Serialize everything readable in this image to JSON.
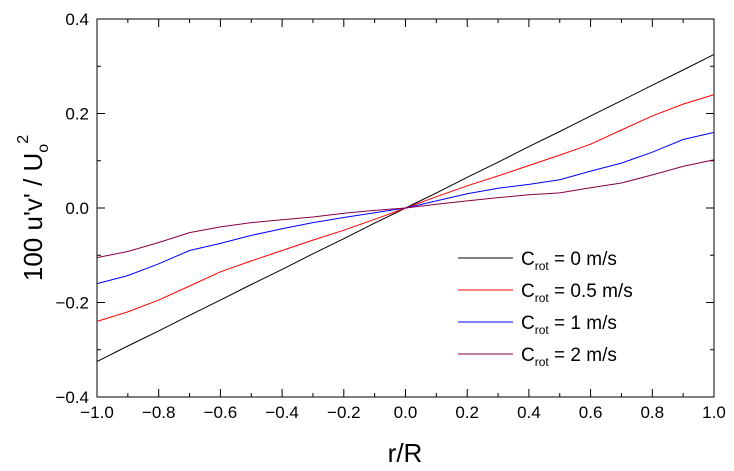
{
  "chart_data": {
    "type": "line",
    "xlabel": "r/R",
    "ylabel_parts": {
      "main": "100 u'v' / U",
      "sub": "o",
      "sup": "2"
    },
    "xlim": [
      -1.0,
      1.0
    ],
    "ylim": [
      -0.4,
      0.4
    ],
    "xticks": [
      -1.0,
      -0.8,
      -0.6,
      -0.4,
      -0.2,
      0.0,
      0.2,
      0.4,
      0.6,
      0.8,
      1.0
    ],
    "xtick_labels": [
      "−1.0",
      "−0.8",
      "−0.6",
      "−0.4",
      "−0.2",
      "0.0",
      "0.2",
      "0.4",
      "0.6",
      "0.8",
      "1.0"
    ],
    "yticks": [
      -0.4,
      -0.2,
      0.0,
      0.2,
      0.4
    ],
    "ytick_labels": [
      "−0.4",
      "−0.2",
      "0.0",
      "0.2",
      "0.4"
    ],
    "grid": false,
    "legend_position": "bottom-right",
    "series": [
      {
        "name_main": "C",
        "name_sub": "rot",
        "name_rest": " = 0 m/s",
        "color": "#000000",
        "x": [
          -1.0,
          -0.9,
          -0.8,
          -0.7,
          -0.6,
          -0.5,
          -0.4,
          -0.3,
          -0.2,
          -0.1,
          0.0,
          0.1,
          0.2,
          0.3,
          0.4,
          0.5,
          0.6,
          0.7,
          0.8,
          0.9,
          1.0
        ],
        "y": [
          -0.325,
          -0.292,
          -0.26,
          -0.227,
          -0.195,
          -0.162,
          -0.13,
          -0.097,
          -0.065,
          -0.032,
          0.0,
          0.032,
          0.065,
          0.097,
          0.13,
          0.162,
          0.195,
          0.227,
          0.26,
          0.292,
          0.325
        ]
      },
      {
        "name_main": "C",
        "name_sub": "rot",
        "name_rest": " = 0.5 m/s",
        "color": "#ff0000",
        "x": [
          -1.0,
          -0.9,
          -0.8,
          -0.7,
          -0.6,
          -0.5,
          -0.4,
          -0.3,
          -0.2,
          -0.1,
          0.0,
          0.1,
          0.2,
          0.3,
          0.4,
          0.5,
          0.6,
          0.7,
          0.8,
          0.9,
          1.0
        ],
        "y": [
          -0.24,
          -0.22,
          -0.195,
          -0.165,
          -0.135,
          -0.112,
          -0.09,
          -0.068,
          -0.047,
          -0.024,
          0.0,
          0.024,
          0.047,
          0.068,
          0.09,
          0.112,
          0.135,
          0.165,
          0.195,
          0.22,
          0.24
        ]
      },
      {
        "name_main": "C",
        "name_sub": "rot",
        "name_rest": " = 1 m/s",
        "color": "#0000ff",
        "x": [
          -1.0,
          -0.9,
          -0.8,
          -0.7,
          -0.6,
          -0.5,
          -0.4,
          -0.3,
          -0.2,
          -0.1,
          0.0,
          0.1,
          0.2,
          0.3,
          0.4,
          0.5,
          0.6,
          0.7,
          0.8,
          0.9,
          1.0
        ],
        "y": [
          -0.16,
          -0.143,
          -0.118,
          -0.09,
          -0.075,
          -0.058,
          -0.044,
          -0.031,
          -0.02,
          -0.01,
          0.0,
          0.015,
          0.03,
          0.042,
          0.05,
          0.06,
          0.078,
          0.095,
          0.118,
          0.145,
          0.16
        ]
      },
      {
        "name_main": "C",
        "name_sub": "rot",
        "name_rest": " = 2 m/s",
        "color": "#880044",
        "x": [
          -1.0,
          -0.9,
          -0.8,
          -0.7,
          -0.6,
          -0.5,
          -0.4,
          -0.3,
          -0.2,
          -0.1,
          0.0,
          0.1,
          0.2,
          0.3,
          0.4,
          0.5,
          0.6,
          0.7,
          0.8,
          0.9,
          1.0
        ],
        "y": [
          -0.105,
          -0.092,
          -0.073,
          -0.052,
          -0.04,
          -0.031,
          -0.025,
          -0.019,
          -0.011,
          -0.005,
          0.0,
          0.008,
          0.015,
          0.022,
          0.028,
          0.032,
          0.043,
          0.053,
          0.07,
          0.088,
          0.102
        ]
      }
    ]
  }
}
